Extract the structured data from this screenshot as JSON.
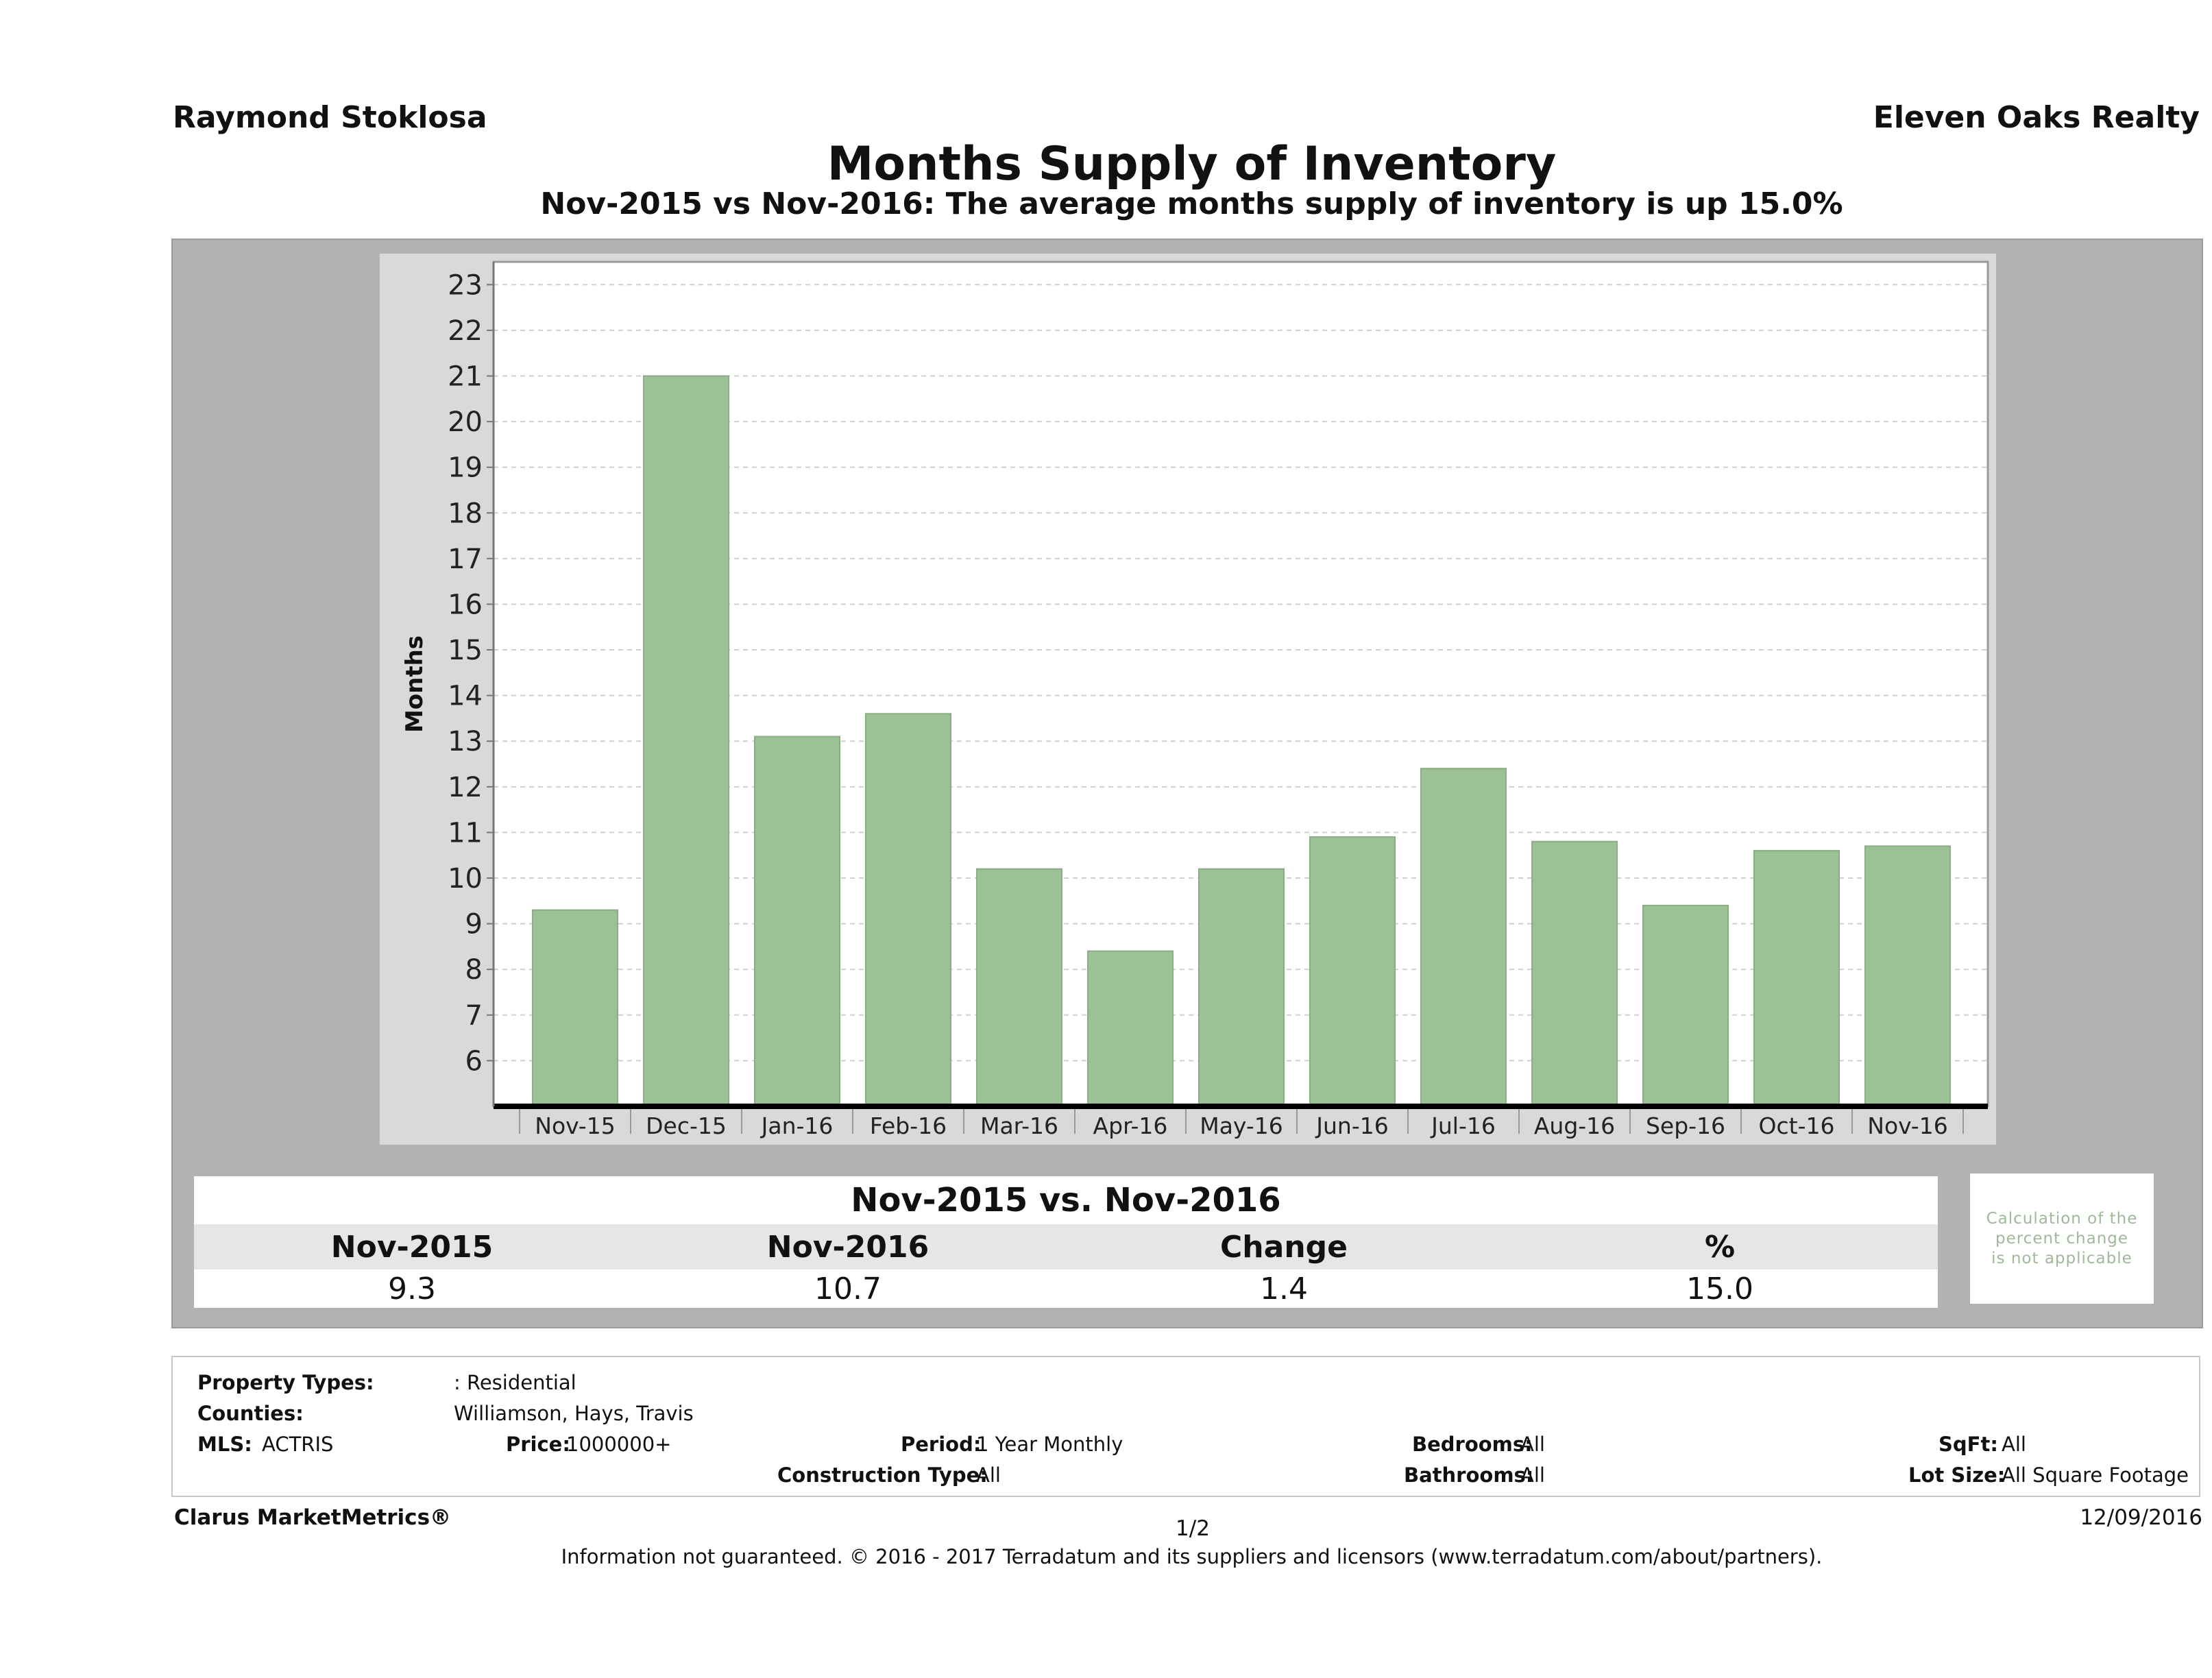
{
  "header": {
    "agent": "Raymond Stoklosa",
    "company": "Eleven Oaks Realty",
    "title": "Months Supply of Inventory",
    "subtitle": "Nov-2015 vs Nov-2016: The average months supply of inventory is up 15.0%"
  },
  "chart_data": {
    "type": "bar",
    "title": "Months Supply of Inventory",
    "subtitle": "Nov-2015 vs Nov-2016: The average months supply of inventory is up 15.0%",
    "xlabel": "",
    "ylabel": "Months",
    "categories": [
      "Nov-15",
      "Dec-15",
      "Jan-16",
      "Feb-16",
      "Mar-16",
      "Apr-16",
      "May-16",
      "Jun-16",
      "Jul-16",
      "Aug-16",
      "Sep-16",
      "Oct-16",
      "Nov-16"
    ],
    "values": [
      9.3,
      21.0,
      13.1,
      13.6,
      10.2,
      8.4,
      10.2,
      10.9,
      12.4,
      10.8,
      9.4,
      10.6,
      10.7
    ],
    "ylim": [
      5,
      23.5
    ],
    "yticks": [
      6,
      7,
      8,
      9,
      10,
      11,
      12,
      13,
      14,
      15,
      16,
      17,
      18,
      19,
      20,
      21,
      22,
      23
    ],
    "grid": true,
    "bar_color": "#9dc196"
  },
  "comparison": {
    "heading": "Nov-2015 vs. Nov-2016",
    "labels": [
      "Nov-2015",
      "Nov-2016",
      "Change",
      "%"
    ],
    "values": [
      "9.3",
      "10.7",
      "1.4",
      "15.0"
    ],
    "note_lines": [
      "Calculation of the",
      "percent change",
      "is not applicable"
    ]
  },
  "criteria": {
    "property_types_label": "Property Types:",
    "property_types_value": ": Residential",
    "counties_label": "Counties:",
    "counties_value": "Williamson, Hays, Travis",
    "mls_label": "MLS:",
    "mls_value": "ACTRIS",
    "price_label": "Price:",
    "price_value": "1000000+",
    "period_label": "Period:",
    "period_value": "1 Year Monthly",
    "construction_label": "Construction Type:",
    "construction_value": "All",
    "bedrooms_label": "Bedrooms:",
    "bedrooms_value": "All",
    "bathrooms_label": "Bathrooms:",
    "bathrooms_value": "All",
    "sqft_label": "SqFt:",
    "sqft_value": "All",
    "lot_label": "Lot Size:",
    "lot_value": "All Square Footage"
  },
  "footer": {
    "brand": "Clarus MarketMetrics®",
    "page": "1/2",
    "date": "12/09/2016",
    "disclaimer": "Information not guaranteed. © 2016 - 2017 Terradatum and its suppliers and licensors (www.terradatum.com/about/partners)."
  }
}
